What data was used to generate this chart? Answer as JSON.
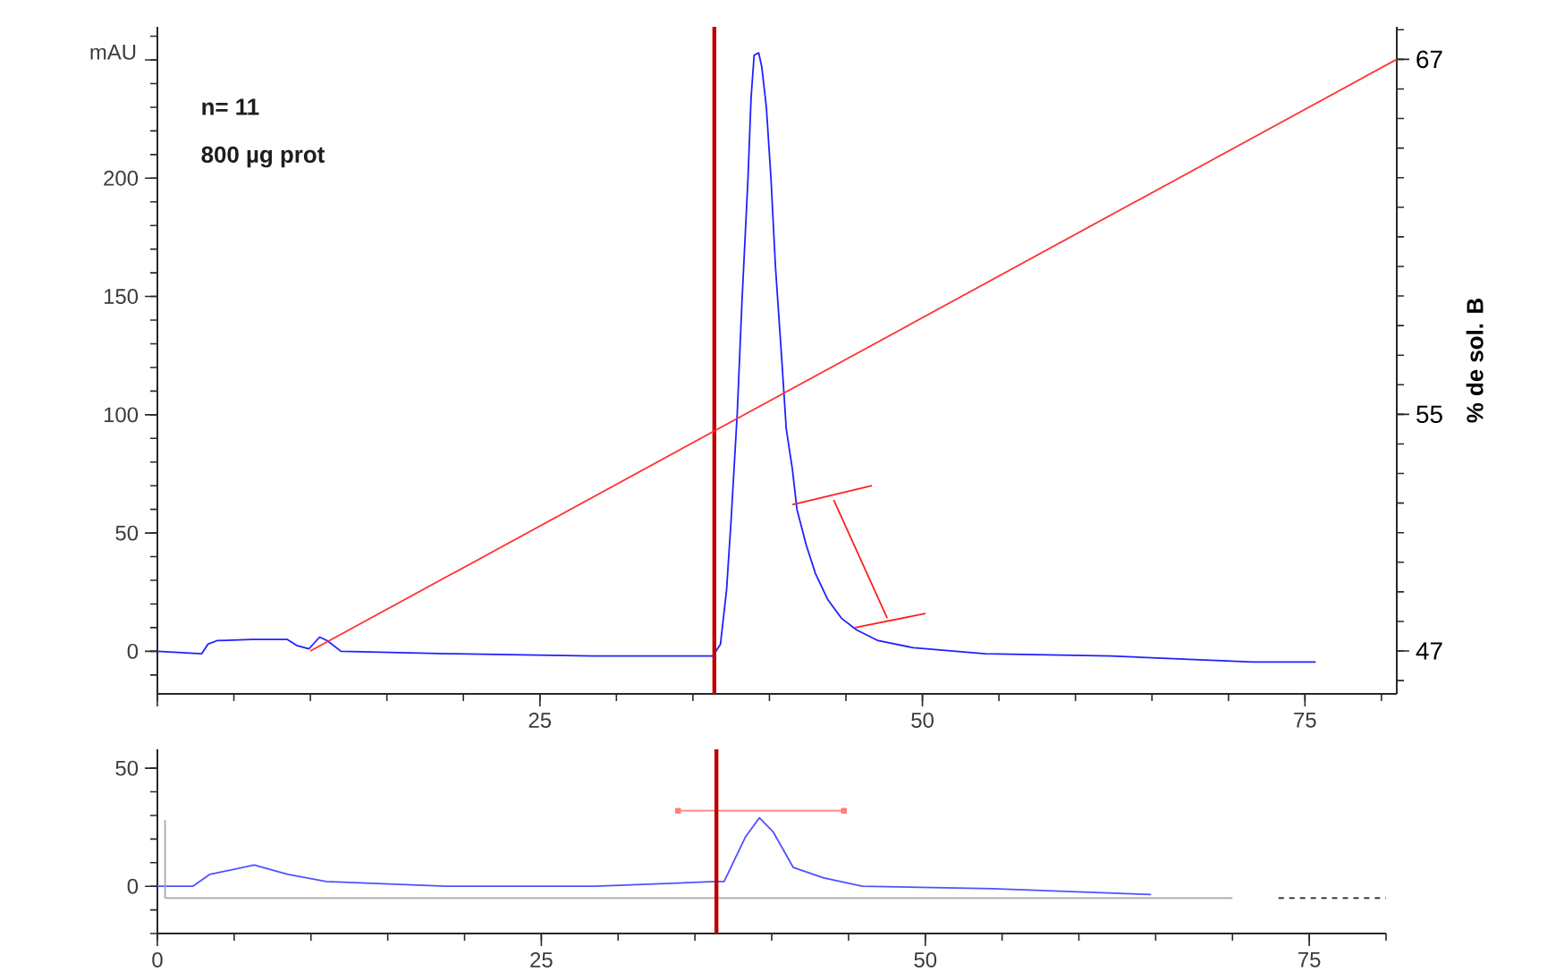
{
  "chart_data": [
    {
      "type": "line",
      "ylabel": "mAU",
      "y2label": "% de sol. B",
      "annotations": [
        "n= 11",
        "800 µg prot"
      ],
      "xlim": [
        0,
        81
      ],
      "ylim": [
        -18,
        264
      ],
      "y2lim": [
        45.55,
        68.1
      ],
      "xticks": [
        {
          "value": 0,
          "label": null
        },
        25,
        50,
        75
      ],
      "yticks": [
        0,
        50,
        100,
        150,
        200,
        {
          "value": 250,
          "label": null
        }
      ],
      "y2ticks": [
        47,
        55,
        67
      ],
      "marker": "none",
      "line_style": "solid",
      "ref_lines": [
        {
          "axis": "x",
          "value": 36.4,
          "color": "#c00000"
        }
      ],
      "series": [
        {
          "color": "#2020ff",
          "x": [
            0,
            2.9,
            3.3,
            3.9,
            6.2,
            8.5,
            9.1,
            9.9,
            10.6,
            11.1,
            12,
            19,
            28.4,
            36.3,
            36.8,
            37.2,
            37.5,
            37.9,
            38.2,
            38.6,
            38.8,
            39.0,
            39.3,
            39.5,
            39.8,
            40.1,
            40.4,
            40.8,
            41.1,
            41.5,
            41.8,
            42.4,
            43,
            43.8,
            44.7,
            45.7,
            47.1,
            49.4,
            54.1,
            62.3,
            71.6,
            75.7
          ],
          "values": [
            0,
            -1,
            3,
            4.5,
            5,
            5,
            2.5,
            1,
            6,
            4.5,
            0,
            -1,
            -2,
            -2,
            3,
            26,
            56,
            101,
            147,
            200,
            234,
            252,
            253,
            247,
            230,
            200,
            162,
            124,
            94,
            77,
            60,
            45,
            33,
            22,
            14,
            9,
            4.5,
            1.5,
            -1,
            -2,
            -4.5,
            -4.5
          ]
        },
        {
          "color": "#ff3030",
          "axis": "y2",
          "x": [
            10,
            81
          ],
          "values": [
            47,
            67
          ]
        },
        {
          "color": "#ff2020",
          "x": [
            41.5,
            46.7,
            null,
            44.2,
            47.7,
            null,
            45.6,
            50.2
          ],
          "values": [
            62,
            70,
            null,
            64,
            14,
            null,
            10,
            16
          ]
        }
      ]
    },
    {
      "type": "line",
      "xlim": [
        0,
        80
      ],
      "ylim": [
        -20,
        58
      ],
      "xticks": [
        0,
        25,
        50,
        75
      ],
      "yticks": [
        0,
        50
      ],
      "marker": "none",
      "line_style": "solid",
      "ref_lines": [
        {
          "axis": "x",
          "value": 36.4,
          "color": "#c00000"
        }
      ],
      "series": [
        {
          "color": "#5050ff",
          "x": [
            0,
            2.3,
            3.4,
            6.3,
            8.5,
            11,
            18.8,
            28.5,
            36.3,
            36.9,
            38.3,
            39.2,
            40.1,
            41.4,
            43.4,
            45.9,
            54.4,
            64.7
          ],
          "values": [
            0,
            0,
            5,
            9,
            5,
            2,
            0,
            0,
            2,
            2,
            21,
            29,
            23,
            8,
            3.5,
            0,
            -1,
            -3.5
          ]
        },
        {
          "color": "#a8a8a8",
          "x": [
            0.5,
            70
          ],
          "values": [
            -5,
            -5
          ]
        },
        {
          "color": "#a8a8a8",
          "x": [
            0.5,
            0.5
          ],
          "values": [
            28,
            -5
          ]
        },
        {
          "color": "#202020",
          "line_style": "dashed",
          "x": [
            73,
            80
          ],
          "values": [
            -5,
            -5
          ]
        },
        {
          "color": "#ff8080",
          "marker": "square",
          "x": [
            33.9,
            44.7
          ],
          "values": [
            32,
            32
          ]
        }
      ]
    }
  ]
}
